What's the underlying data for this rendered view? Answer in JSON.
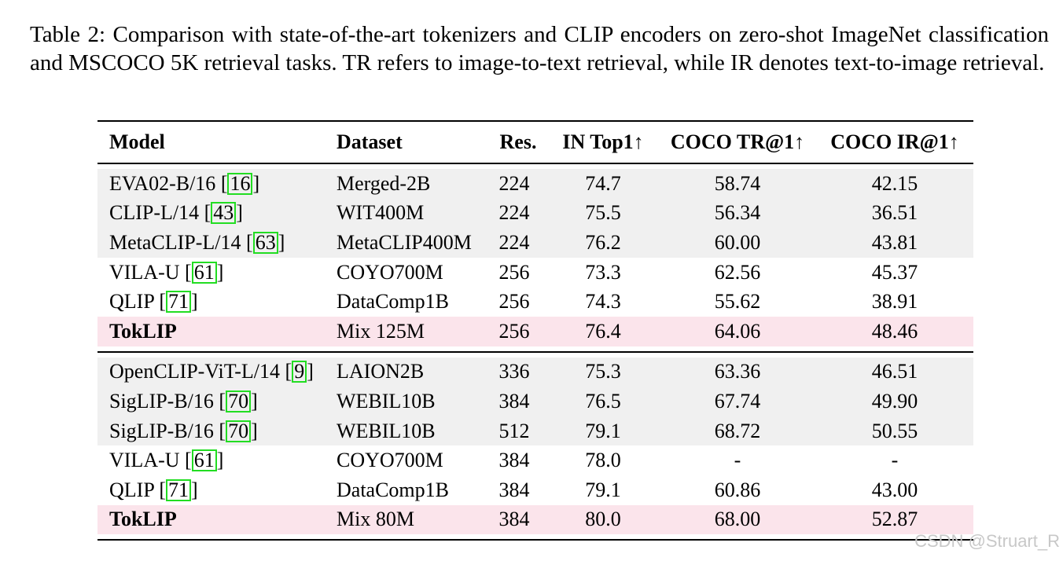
{
  "caption": "Table 2: Comparison with state-of-the-art tokenizers and CLIP encoders on zero-shot ImageNet classification and MSCOCO 5K retrieval tasks. TR refers to image-to-text retrieval, while IR denotes text-to-image retrieval.",
  "header": {
    "model": "Model",
    "dataset": "Dataset",
    "res": "Res.",
    "top1": "IN Top1↑",
    "tr": "COCO TR@1↑",
    "ir": "COCO IR@1↑"
  },
  "group1": [
    {
      "model": "EVA02-B/16",
      "cite": "16",
      "dataset": "Merged-2B",
      "res": "224",
      "top1": "74.7",
      "tr": "58.74",
      "ir": "42.15"
    },
    {
      "model": "CLIP-L/14",
      "cite": "43",
      "dataset": "WIT400M",
      "res": "224",
      "top1": "75.5",
      "tr": "56.34",
      "ir": "36.51"
    },
    {
      "model": "MetaCLIP-L/14",
      "cite": "63",
      "dataset": "MetaCLIP400M",
      "res": "224",
      "top1": "76.2",
      "tr": "60.00",
      "ir": "43.81"
    },
    {
      "model": "VILA-U",
      "cite": "61",
      "dataset": "COYO700M",
      "res": "256",
      "top1": "73.3",
      "tr": "62.56",
      "ir": "45.37"
    },
    {
      "model": "QLIP",
      "cite": "71",
      "dataset": "DataComp1B",
      "res": "256",
      "top1": "74.3",
      "tr": "55.62",
      "ir": "38.91"
    },
    {
      "model": "TokLIP",
      "cite": "",
      "dataset": "Mix 125M",
      "res": "256",
      "top1": "76.4",
      "tr": "64.06",
      "ir": "48.46"
    }
  ],
  "group2": [
    {
      "model": "OpenCLIP-ViT-L/14",
      "cite": "9",
      "dataset": "LAION2B",
      "res": "336",
      "top1": "75.3",
      "tr": "63.36",
      "ir": "46.51"
    },
    {
      "model": "SigLIP-B/16",
      "cite": "70",
      "dataset": "WEBIL10B",
      "res": "384",
      "top1": "76.5",
      "tr": "67.74",
      "ir": "49.90"
    },
    {
      "model": "SigLIP-B/16",
      "cite": "70",
      "dataset": "WEBIL10B",
      "res": "512",
      "top1": "79.1",
      "tr": "68.72",
      "ir": "50.55"
    },
    {
      "model": "VILA-U",
      "cite": "61",
      "dataset": "COYO700M",
      "res": "384",
      "top1": "78.0",
      "tr": "-",
      "ir": "-"
    },
    {
      "model": "QLIP",
      "cite": "71",
      "dataset": "DataComp1B",
      "res": "384",
      "top1": "79.1",
      "tr": "60.86",
      "ir": "43.00"
    },
    {
      "model": "TokLIP",
      "cite": "",
      "dataset": "Mix 80M",
      "res": "384",
      "top1": "80.0",
      "tr": "68.00",
      "ir": "52.87"
    }
  ],
  "watermark": "CSDN @Struart_R",
  "colors": {
    "row_shade": "#f0f0f0",
    "row_highlight": "#fbe4eb",
    "citation_box": "#22dd22"
  }
}
